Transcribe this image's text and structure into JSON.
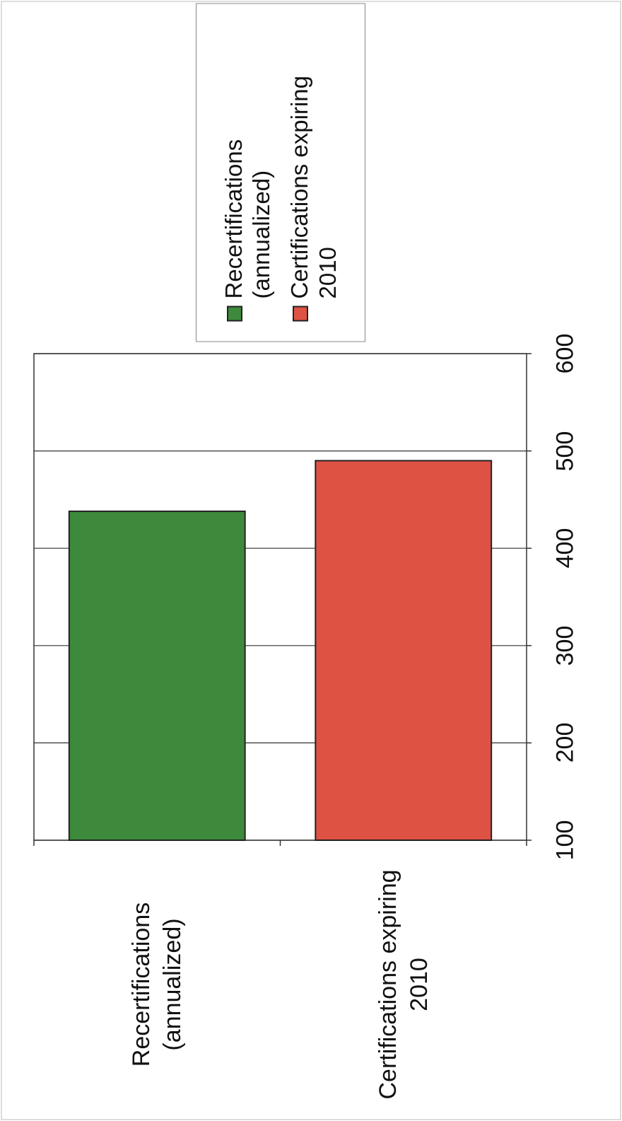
{
  "chart_data": {
    "type": "bar",
    "categories": [
      "Recertifications (annualized)",
      "Certifications expiring 2010"
    ],
    "series": [
      {
        "name": "Recertifications (annualized)",
        "color": "#3d8a3c",
        "values": [
          438,
          null
        ]
      },
      {
        "name": "Certifications expiring 2010",
        "color": "#de5244",
        "values": [
          null,
          490
        ]
      }
    ],
    "ylim": [
      100,
      600
    ],
    "yticks": [
      100,
      200,
      300,
      400,
      500,
      600
    ],
    "grid": true
  }
}
